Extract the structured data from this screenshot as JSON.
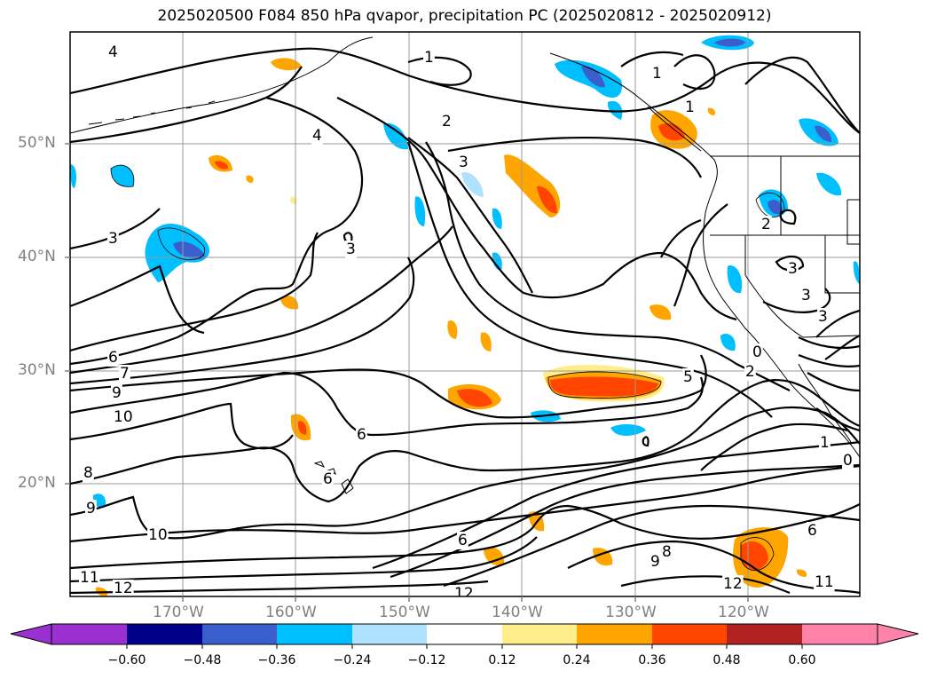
{
  "title": "2025020500 F084 850 hPa qvapor, precipitation PC (2025020812 - 2025020912)",
  "map": {
    "lat_labels": [
      "50°N",
      "40°N",
      "30°N",
      "20°N"
    ],
    "lon_labels": [
      "170°W",
      "160°W",
      "150°W",
      "140°W",
      "130°W",
      "120°W"
    ],
    "contour_labels": [
      "4",
      "1",
      "2",
      "1",
      "1",
      "4",
      "3",
      "3",
      "3",
      "3",
      "6",
      "7",
      "9",
      "10",
      "6",
      "6",
      "8",
      "9",
      "10",
      "11",
      "12",
      "12",
      "6",
      "5",
      "2",
      "0",
      "3",
      "3",
      "1",
      "0",
      "9",
      "8",
      "12",
      "11",
      "6",
      "2"
    ]
  },
  "colorbar": {
    "ticks": [
      "−0.60",
      "−0.48",
      "−0.36",
      "−0.24",
      "−0.12",
      "0.12",
      "0.24",
      "0.36",
      "0.48",
      "0.60"
    ],
    "colors": [
      "#9b30d0",
      "#00008b",
      "#3a5fcd",
      "#00bfff",
      "#b0e2ff",
      "#ffffff",
      "#ffec8b",
      "#ffa500",
      "#ff4500",
      "#b22222",
      "#ff82ab"
    ]
  }
}
